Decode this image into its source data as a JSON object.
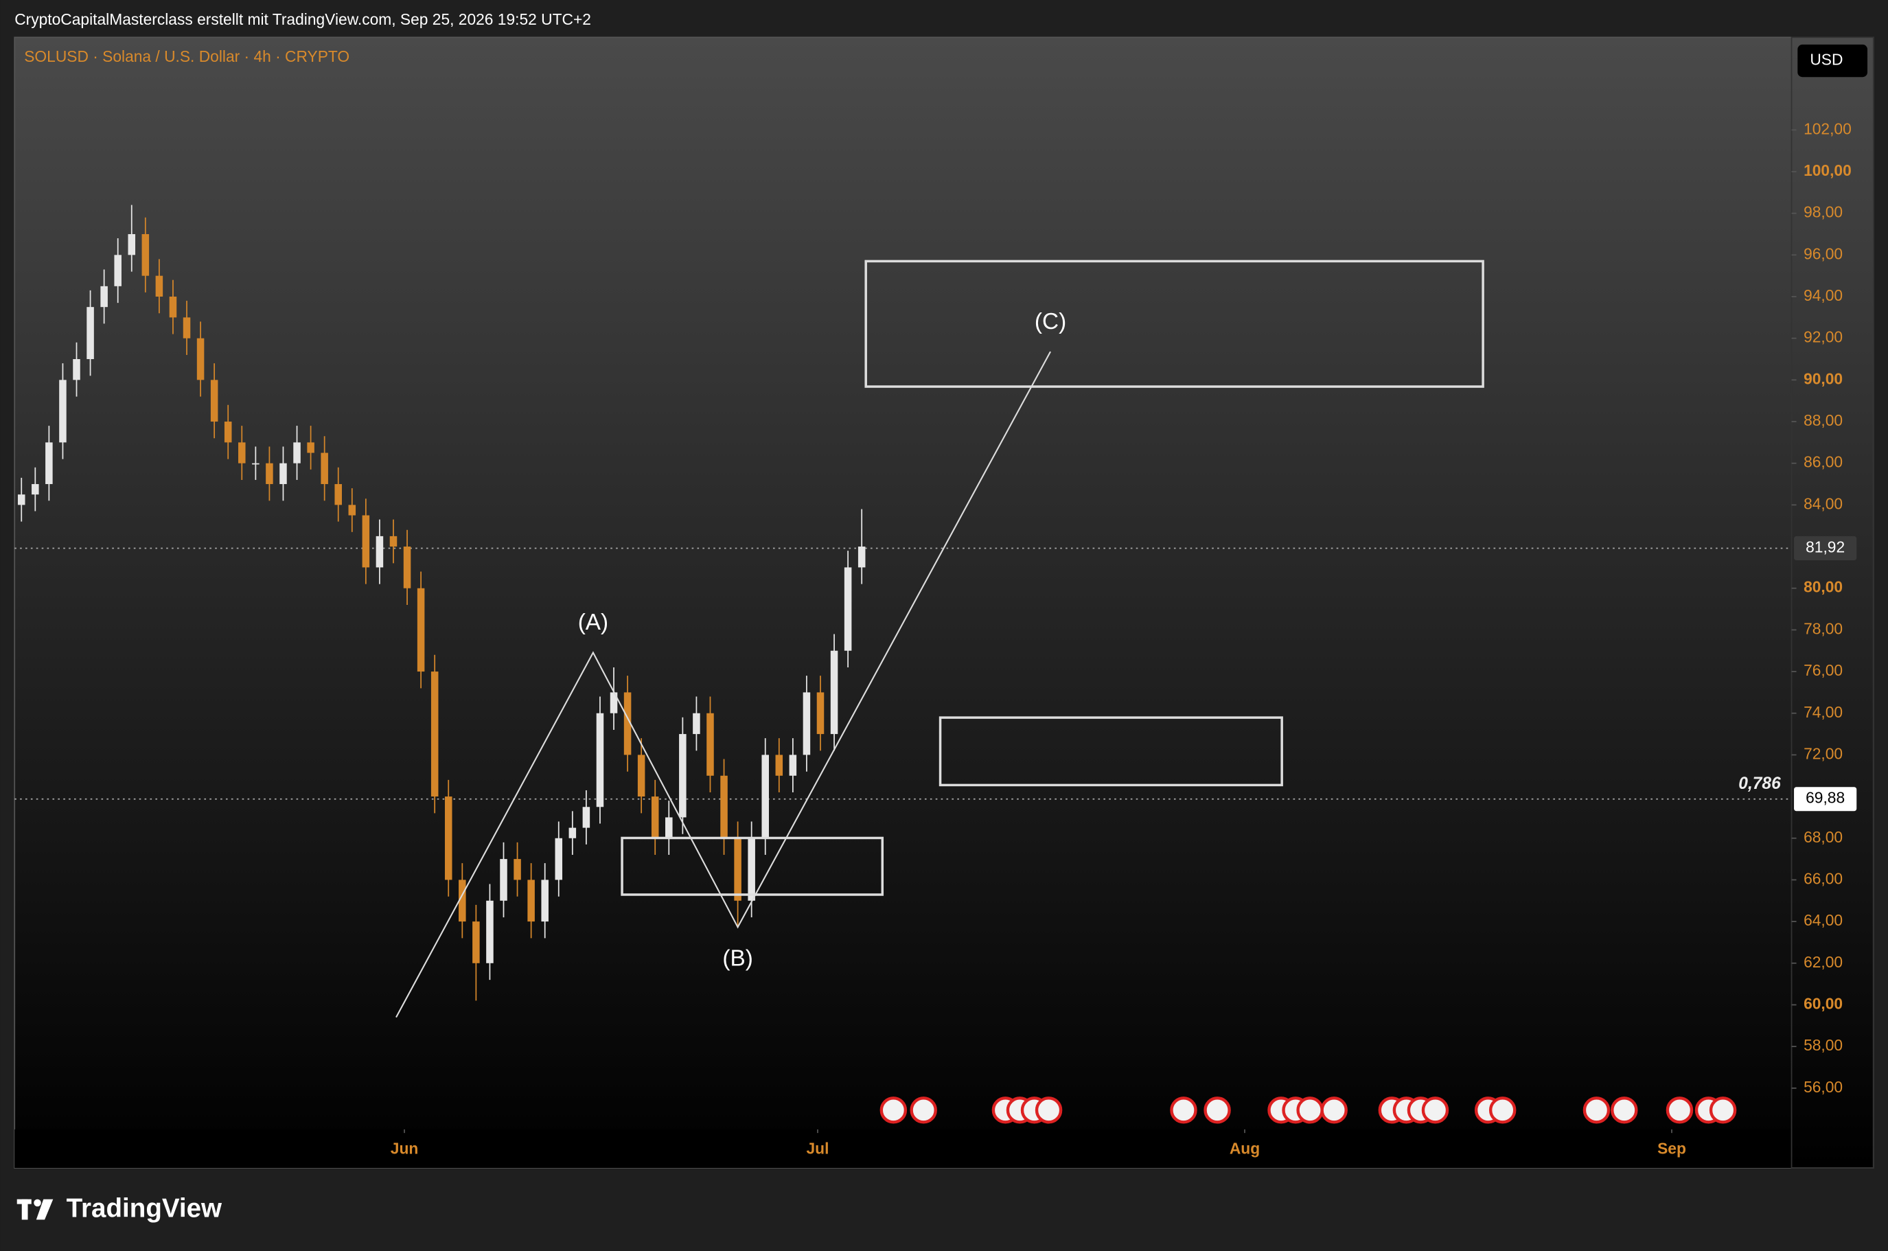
{
  "header": "CryptoCapitalMasterclass erstellt mit TradingView.com, Sep 25, 2026 19:52 UTC+2",
  "brand": "TradingView",
  "chart_data": {
    "type": "candlestick",
    "title": "SOLUSD · Solana / U.S. Dollar · 4h · CRYPTO",
    "currency": "USD",
    "up_color": "#e6e6e6",
    "down_color": "#d4862a",
    "x": [
      0.5,
      1.5,
      2.5,
      3.5,
      4.5,
      5.5,
      6.5,
      7.5,
      8.5,
      9.5,
      10.5,
      11.5,
      12.5,
      13.5,
      14.5,
      15.5,
      16.5,
      17.5,
      18.5,
      19.5,
      20.5,
      21.5,
      22.5,
      23.5,
      24.5,
      25.5,
      26.5,
      27.5,
      28.5,
      29.5,
      30.5,
      31.5,
      32.5,
      33.5,
      34.5,
      35.5,
      36.5,
      37.5,
      38.5,
      39.5,
      40.5,
      41.5,
      42.5,
      43.5,
      44.5,
      45.5,
      46.5,
      47.5,
      48.5,
      49.5,
      50.5,
      51.5,
      52.5,
      53.5,
      54.5,
      55.5,
      56.5,
      57.5,
      58.5,
      59.5,
      60.5,
      61.5
    ],
    "open": [
      84,
      84.5,
      85,
      87,
      90,
      91,
      93.5,
      94.5,
      96,
      97,
      95,
      94,
      93,
      92,
      90,
      88,
      87,
      86,
      86,
      85,
      86,
      87,
      86.5,
      85,
      84,
      83.5,
      81,
      82.5,
      82,
      80,
      76,
      70,
      66,
      64,
      62,
      65,
      67,
      66,
      64,
      66,
      68,
      68.5,
      69.5,
      74,
      75,
      72,
      70,
      68,
      69,
      73,
      74,
      71,
      68,
      65,
      68,
      72,
      71,
      72,
      75,
      73,
      77,
      81
    ],
    "high": [
      85.3,
      85.8,
      87.8,
      90.8,
      91.8,
      94.3,
      95.3,
      96.8,
      98.4,
      97.8,
      95.8,
      94.8,
      93.8,
      92.8,
      90.8,
      88.8,
      87.8,
      86.8,
      86.8,
      86.8,
      87.8,
      87.8,
      87.3,
      85.8,
      84.8,
      84.3,
      83.3,
      83.3,
      82.8,
      80.8,
      76.8,
      70.8,
      66.8,
      64.8,
      65.8,
      67.8,
      67.8,
      66.8,
      66.8,
      68.8,
      69.3,
      70.3,
      74.8,
      76.2,
      75.8,
      72.8,
      70.8,
      69.8,
      73.8,
      74.8,
      74.8,
      71.8,
      68.8,
      68.8,
      72.8,
      72.8,
      72.8,
      75.8,
      75.8,
      77.8,
      81.8,
      83.8
    ],
    "low": [
      83.2,
      83.7,
      84.2,
      86.2,
      89.2,
      90.2,
      92.7,
      93.7,
      95.2,
      94.2,
      93.2,
      92.2,
      91.2,
      89.2,
      87.2,
      86.2,
      85.2,
      85.2,
      84.2,
      84.2,
      85.2,
      85.7,
      84.2,
      83.2,
      82.7,
      80.2,
      80.2,
      81.2,
      79.2,
      75.2,
      69.2,
      65.2,
      63.2,
      60.2,
      61.2,
      64.2,
      65.2,
      63.2,
      63.2,
      65.2,
      67.2,
      67.7,
      68.7,
      73.2,
      71.2,
      69.2,
      67.2,
      67.2,
      68.2,
      72.2,
      70.2,
      67.2,
      63.7,
      64.2,
      67.2,
      70.2,
      70.2,
      71.2,
      72.2,
      72.2,
      76.2,
      80.2
    ],
    "close": [
      84.5,
      85,
      87,
      90,
      91,
      93.5,
      94.5,
      96,
      97,
      95,
      94,
      93,
      92,
      90,
      88,
      87,
      86,
      86,
      85,
      86,
      87,
      86.5,
      85,
      84,
      83.5,
      81,
      82.5,
      82,
      80,
      76,
      70,
      66,
      64,
      62,
      65,
      67,
      66,
      64,
      66,
      68,
      68.5,
      69.5,
      74,
      75,
      72,
      70,
      68,
      69,
      73,
      74,
      71,
      68,
      65,
      68,
      72,
      71,
      72,
      75,
      73,
      77,
      81,
      82
    ],
    "xlim": [
      0,
      129
    ],
    "xticks": [
      {
        "value": 28.3,
        "label": "Jun"
      },
      {
        "value": 58.3,
        "label": "Jul"
      },
      {
        "value": 89.3,
        "label": "Aug"
      },
      {
        "value": 120.3,
        "label": "Sep"
      }
    ],
    "ylim": [
      54.02,
      106.39
    ],
    "yticks": [
      {
        "value": 56,
        "label": "56,00"
      },
      {
        "value": 58,
        "label": "58,00"
      },
      {
        "value": 60,
        "label": "60,00"
      },
      {
        "value": 62,
        "label": "62,00"
      },
      {
        "value": 64,
        "label": "64,00"
      },
      {
        "value": 66,
        "label": "66,00"
      },
      {
        "value": 68,
        "label": "68,00"
      },
      {
        "value": 72,
        "label": "72,00"
      },
      {
        "value": 74,
        "label": "74,00"
      },
      {
        "value": 76,
        "label": "76,00"
      },
      {
        "value": 78,
        "label": "78,00"
      },
      {
        "value": 80,
        "label": "80,00"
      },
      {
        "value": 84,
        "label": "84,00"
      },
      {
        "value": 86,
        "label": "86,00"
      },
      {
        "value": 88,
        "label": "88,00"
      },
      {
        "value": 90,
        "label": "90,00"
      },
      {
        "value": 92,
        "label": "92,00"
      },
      {
        "value": 94,
        "label": "94,00"
      },
      {
        "value": 96,
        "label": "96,00"
      },
      {
        "value": 98,
        "label": "98,00"
      },
      {
        "value": 100,
        "label": "100,00"
      },
      {
        "value": 102,
        "label": "102,00"
      }
    ],
    "price_lines": [
      {
        "value": 81.92,
        "label": "81,92"
      },
      {
        "value": 69.88,
        "label": "69,88",
        "level": "0,786"
      }
    ],
    "wave": {
      "x": [
        27.7,
        42,
        52.5,
        75.2
      ],
      "y": [
        59.4,
        76.91,
        63.73,
        91.36
      ],
      "labels": [
        null,
        "(A)",
        "(B)",
        "(C)"
      ]
    },
    "zones": [
      {
        "x": [
          61.8,
          106.6
        ],
        "y": [
          89.68,
          95.7
        ]
      },
      {
        "x": [
          67.2,
          92
        ],
        "y": [
          70.55,
          73.79
        ]
      },
      {
        "x": [
          44.1,
          63
        ],
        "y": [
          65.29,
          68.01
        ]
      }
    ]
  }
}
